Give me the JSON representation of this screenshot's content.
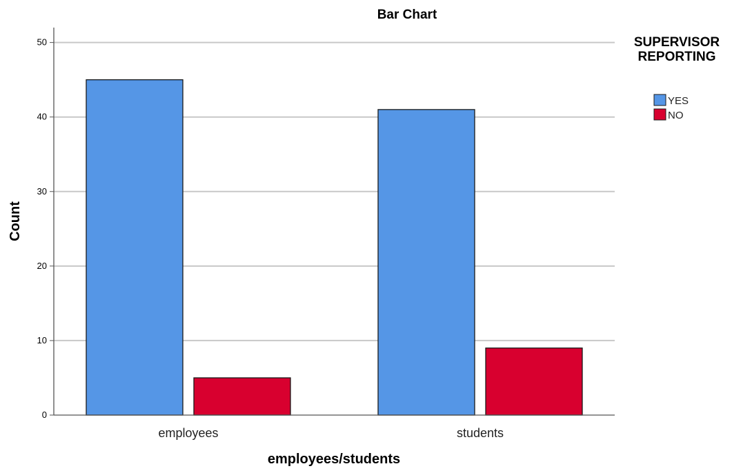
{
  "chart_data": {
    "type": "bar",
    "title": "Bar Chart",
    "xlabel": "employees/students",
    "ylabel": "Count",
    "categories": [
      "employees",
      "students"
    ],
    "series": [
      {
        "name": "YES",
        "values": [
          45,
          41
        ]
      },
      {
        "name": "NO",
        "values": [
          5,
          9
        ]
      }
    ],
    "ylim": [
      0,
      52
    ],
    "yticks": [
      0,
      10,
      20,
      30,
      40,
      50
    ],
    "grid": true,
    "legend": {
      "title_line1": "SUPERVISOR",
      "title_line2": "REPORTING",
      "placement": "top-right"
    },
    "colors": {
      "YES": "#5596E6",
      "NO": "#D8002F",
      "grid": "#C8C8C8",
      "axis": "#555555",
      "bar_edge": "#1A1A1A"
    }
  }
}
